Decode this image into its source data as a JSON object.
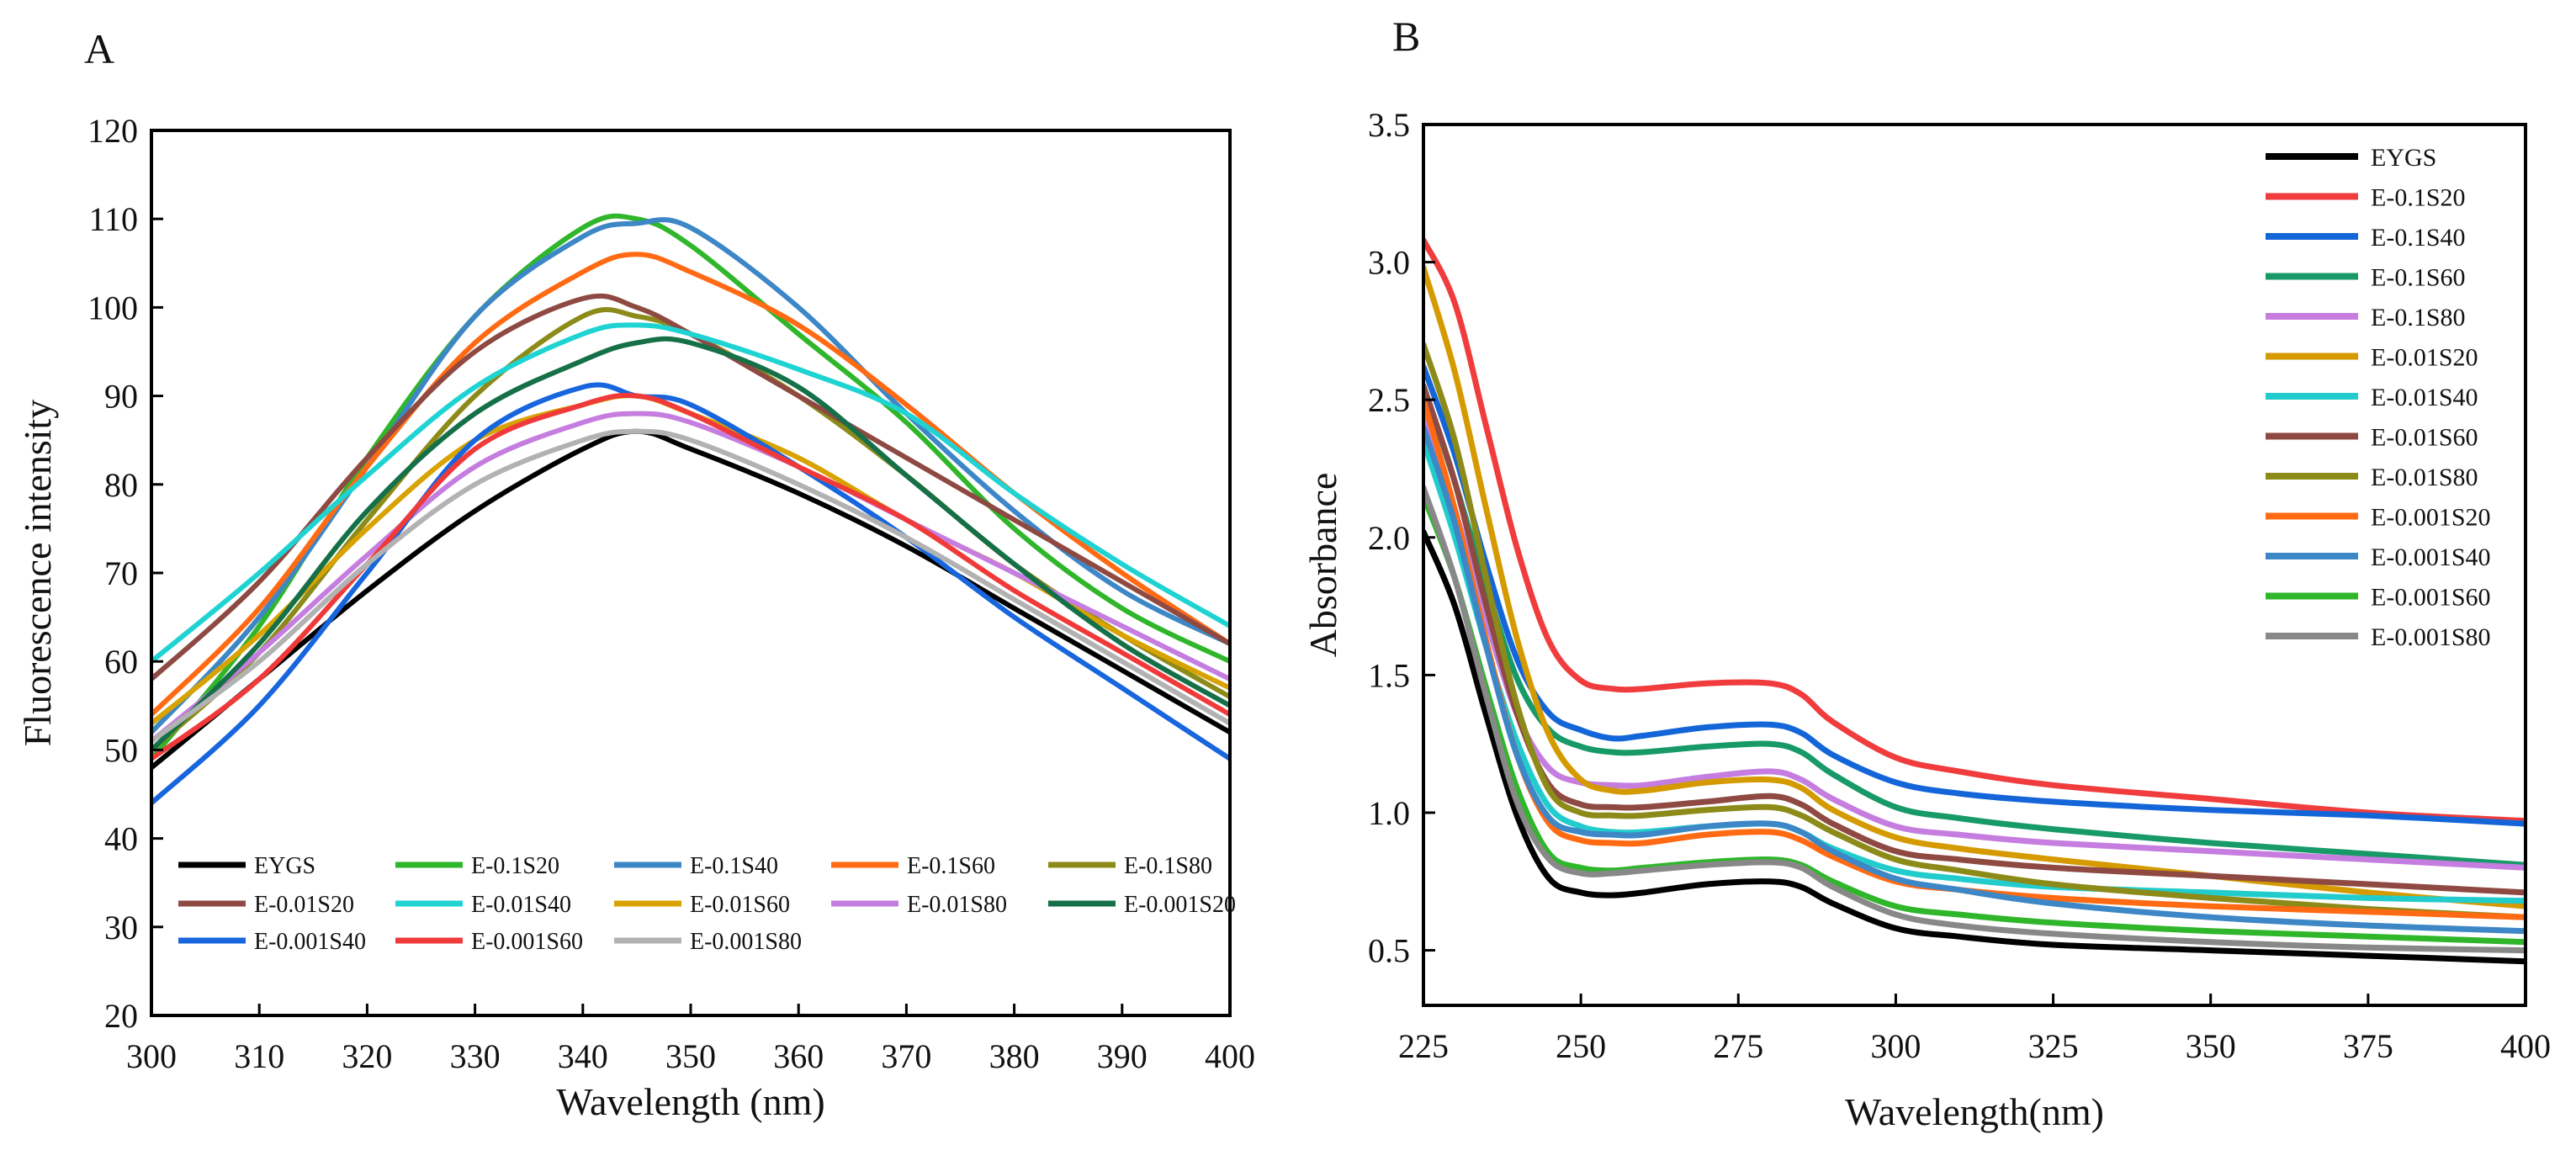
{
  "chart_data": [
    {
      "panel": "A",
      "type": "line",
      "xlabel": "Wavelength (nm)",
      "ylabel": "Fluorescence intensity",
      "xlim": [
        300,
        400
      ],
      "ylim": [
        20,
        120
      ],
      "xticks": [
        300,
        310,
        320,
        330,
        340,
        350,
        360,
        370,
        380,
        390,
        400
      ],
      "yticks": [
        20,
        30,
        40,
        50,
        60,
        70,
        80,
        90,
        100,
        110,
        120
      ],
      "legend_position": "bottom",
      "x": [
        300,
        310,
        320,
        330,
        340,
        345,
        350,
        360,
        370,
        380,
        390,
        400
      ],
      "series": [
        {
          "name": "EYGS",
          "color": "#000000",
          "values": [
            48,
            58,
            68,
            77,
            84,
            86,
            84,
            79,
            73,
            66,
            59,
            52
          ]
        },
        {
          "name": "E-0.1S20",
          "color": "#2fb62a",
          "values": [
            49,
            64,
            83,
            99,
            109,
            110,
            107,
            97,
            87,
            75,
            66,
            60
          ]
        },
        {
          "name": "E-0.1S40",
          "color": "#3d87c6",
          "values": [
            52,
            65,
            82,
            99,
            108,
            109.5,
            109,
            100,
            88,
            77,
            68,
            62
          ]
        },
        {
          "name": "E-0.1S60",
          "color": "#ff6a13",
          "values": [
            54,
            66,
            82,
            96,
            104,
            106,
            104,
            98,
            89,
            79,
            70,
            62
          ]
        },
        {
          "name": "E-0.1S80",
          "color": "#8c8a18",
          "values": [
            50,
            61,
            76,
            90,
            99,
            99,
            97,
            90,
            81,
            71,
            63,
            56
          ]
        },
        {
          "name": "E-0.01S20",
          "color": "#8e4a42",
          "values": [
            58,
            69,
            83,
            95,
            101,
            100,
            97,
            90,
            83,
            76,
            69,
            62
          ]
        },
        {
          "name": "E-0.01S40",
          "color": "#1fd3d3",
          "values": [
            60,
            70,
            81,
            91,
            97,
            98,
            97,
            93,
            88,
            79,
            71,
            64
          ]
        },
        {
          "name": "E-0.01S60",
          "color": "#d8a200",
          "values": [
            53,
            63,
            75,
            85,
            89,
            90,
            88,
            83,
            76,
            70,
            63,
            57
          ]
        },
        {
          "name": "E-0.01S80",
          "color": "#c57ddf",
          "values": [
            51,
            61,
            72,
            82,
            87,
            88,
            87,
            82,
            76,
            70,
            64,
            58
          ]
        },
        {
          "name": "E-0.001S20",
          "color": "#157048",
          "values": [
            50,
            62,
            77,
            88,
            94,
            96,
            96,
            91,
            81,
            71,
            62,
            55
          ]
        },
        {
          "name": "E-0.001S40",
          "color": "#1766de",
          "values": [
            44,
            55,
            70,
            85,
            91,
            90,
            89,
            82,
            74,
            65,
            57,
            49
          ]
        },
        {
          "name": "E-0.001S60",
          "color": "#f03a3a",
          "values": [
            49,
            58,
            71,
            84,
            89,
            90,
            88,
            82,
            76,
            68,
            61,
            54
          ]
        },
        {
          "name": "E-0.001S80",
          "color": "#b2b2b2",
          "values": [
            51,
            60,
            71,
            80,
            85,
            86,
            85,
            80,
            74,
            67,
            60,
            53
          ]
        }
      ]
    },
    {
      "panel": "B",
      "type": "line",
      "xlabel": "Wavelength(nm)",
      "ylabel": "Absorbance",
      "xlim": [
        225,
        400
      ],
      "ylim": [
        0.3,
        3.5
      ],
      "xticks": [
        225,
        250,
        275,
        300,
        325,
        350,
        375,
        400
      ],
      "yticks": [
        0.5,
        1.0,
        1.5,
        2.0,
        2.5,
        3.0,
        3.5
      ],
      "legend_position": "top-right",
      "x": [
        225,
        230,
        235,
        240,
        245,
        250,
        255,
        260,
        270,
        280,
        285,
        290,
        300,
        310,
        325,
        350,
        375,
        400
      ],
      "series": [
        {
          "name": "EYGS",
          "color": "#000000",
          "values": [
            2.02,
            1.75,
            1.35,
            0.98,
            0.76,
            0.71,
            0.7,
            0.71,
            0.74,
            0.75,
            0.73,
            0.67,
            0.58,
            0.55,
            0.52,
            0.5,
            0.48,
            0.46
          ]
        },
        {
          "name": "E-0.1S20",
          "color": "#f03c3c",
          "values": [
            3.08,
            2.85,
            2.4,
            1.95,
            1.62,
            1.48,
            1.45,
            1.45,
            1.47,
            1.47,
            1.43,
            1.33,
            1.2,
            1.15,
            1.1,
            1.05,
            1.0,
            0.97
          ]
        },
        {
          "name": "E-0.1S40",
          "color": "#1466d8",
          "values": [
            2.62,
            2.3,
            1.9,
            1.55,
            1.36,
            1.3,
            1.27,
            1.28,
            1.31,
            1.32,
            1.29,
            1.21,
            1.11,
            1.07,
            1.04,
            1.01,
            0.99,
            0.96
          ]
        },
        {
          "name": "E-0.1S60",
          "color": "#179a68",
          "values": [
            2.55,
            2.2,
            1.82,
            1.48,
            1.3,
            1.24,
            1.22,
            1.22,
            1.24,
            1.25,
            1.22,
            1.14,
            1.02,
            0.98,
            0.94,
            0.89,
            0.85,
            0.81
          ]
        },
        {
          "name": "E-0.1S80",
          "color": "#c57ddf",
          "values": [
            2.45,
            2.1,
            1.7,
            1.35,
            1.16,
            1.11,
            1.1,
            1.1,
            1.13,
            1.15,
            1.12,
            1.05,
            0.95,
            0.92,
            0.89,
            0.86,
            0.83,
            0.8
          ]
        },
        {
          "name": "E-0.01S20",
          "color": "#d49a00",
          "values": [
            2.98,
            2.6,
            2.1,
            1.62,
            1.28,
            1.12,
            1.08,
            1.08,
            1.11,
            1.12,
            1.09,
            1.01,
            0.91,
            0.87,
            0.83,
            0.77,
            0.71,
            0.66
          ]
        },
        {
          "name": "E-0.01S40",
          "color": "#22cccc",
          "values": [
            2.35,
            2.0,
            1.6,
            1.25,
            1.02,
            0.95,
            0.93,
            0.93,
            0.95,
            0.96,
            0.93,
            0.87,
            0.79,
            0.76,
            0.73,
            0.71,
            0.69,
            0.68
          ]
        },
        {
          "name": "E-0.01S60",
          "color": "#8e4a42",
          "values": [
            2.55,
            2.2,
            1.75,
            1.35,
            1.1,
            1.03,
            1.02,
            1.02,
            1.04,
            1.06,
            1.03,
            0.96,
            0.86,
            0.83,
            0.8,
            0.77,
            0.74,
            0.71
          ]
        },
        {
          "name": "E-0.01S80",
          "color": "#8c8a18",
          "values": [
            2.7,
            2.35,
            1.85,
            1.38,
            1.08,
            1.0,
            0.99,
            0.99,
            1.01,
            1.02,
            0.99,
            0.93,
            0.83,
            0.79,
            0.74,
            0.69,
            0.65,
            0.62
          ]
        },
        {
          "name": "E-0.001S20",
          "color": "#ff6a13",
          "values": [
            2.5,
            2.1,
            1.62,
            1.2,
            0.96,
            0.9,
            0.89,
            0.89,
            0.92,
            0.93,
            0.9,
            0.84,
            0.75,
            0.72,
            0.69,
            0.66,
            0.64,
            0.62
          ]
        },
        {
          "name": "E-0.001S40",
          "color": "#3d87c6",
          "values": [
            2.4,
            2.05,
            1.6,
            1.2,
            0.98,
            0.93,
            0.92,
            0.92,
            0.95,
            0.96,
            0.93,
            0.86,
            0.76,
            0.72,
            0.67,
            0.62,
            0.59,
            0.57
          ]
        },
        {
          "name": "E-0.001S60",
          "color": "#2fb62a",
          "values": [
            2.15,
            1.85,
            1.45,
            1.08,
            0.85,
            0.8,
            0.79,
            0.8,
            0.82,
            0.83,
            0.81,
            0.75,
            0.66,
            0.63,
            0.6,
            0.57,
            0.55,
            0.53
          ]
        },
        {
          "name": "E-0.001S80",
          "color": "#888888",
          "values": [
            2.18,
            1.85,
            1.42,
            1.03,
            0.83,
            0.78,
            0.78,
            0.79,
            0.81,
            0.82,
            0.8,
            0.73,
            0.63,
            0.59,
            0.56,
            0.53,
            0.51,
            0.5
          ]
        }
      ]
    }
  ]
}
